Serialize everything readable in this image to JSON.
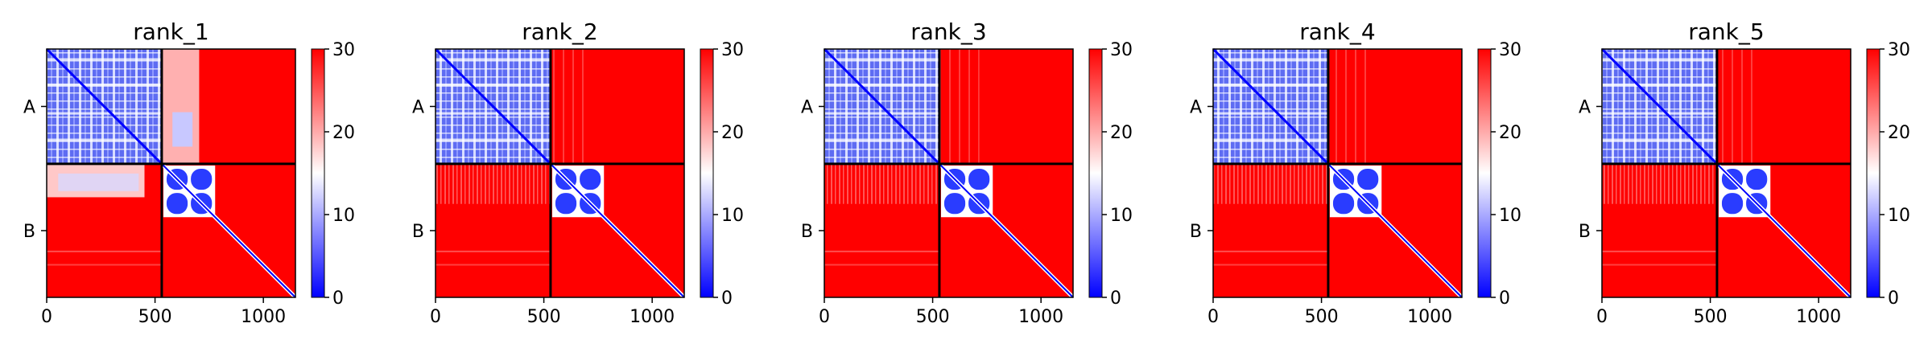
{
  "chart_data": {
    "type": "heatmap",
    "panels": [
      {
        "title": "rank_1"
      },
      {
        "title": "rank_2"
      },
      {
        "title": "rank_3"
      },
      {
        "title": "rank_4"
      },
      {
        "title": "rank_5"
      }
    ],
    "chains": [
      {
        "label": "A",
        "start": 0,
        "end": 531
      },
      {
        "label": "B",
        "start": 531,
        "end": 1148
      }
    ],
    "xlim": [
      0,
      1148
    ],
    "x_ticks": [
      {
        "value": 0,
        "label": "0"
      },
      {
        "value": 500,
        "label": "500"
      },
      {
        "value": 1000,
        "label": "1000"
      }
    ],
    "colorbar": {
      "range": [
        0,
        30
      ],
      "colors": [
        "#0000ff",
        "#ffffff",
        "#ff0000"
      ],
      "ticks": [
        {
          "value": 0,
          "label": "0"
        },
        {
          "value": 10,
          "label": "10"
        },
        {
          "value": 20,
          "label": "20"
        },
        {
          "value": 30,
          "label": "30"
        }
      ]
    },
    "chain_boundary_color": "#000000"
  }
}
